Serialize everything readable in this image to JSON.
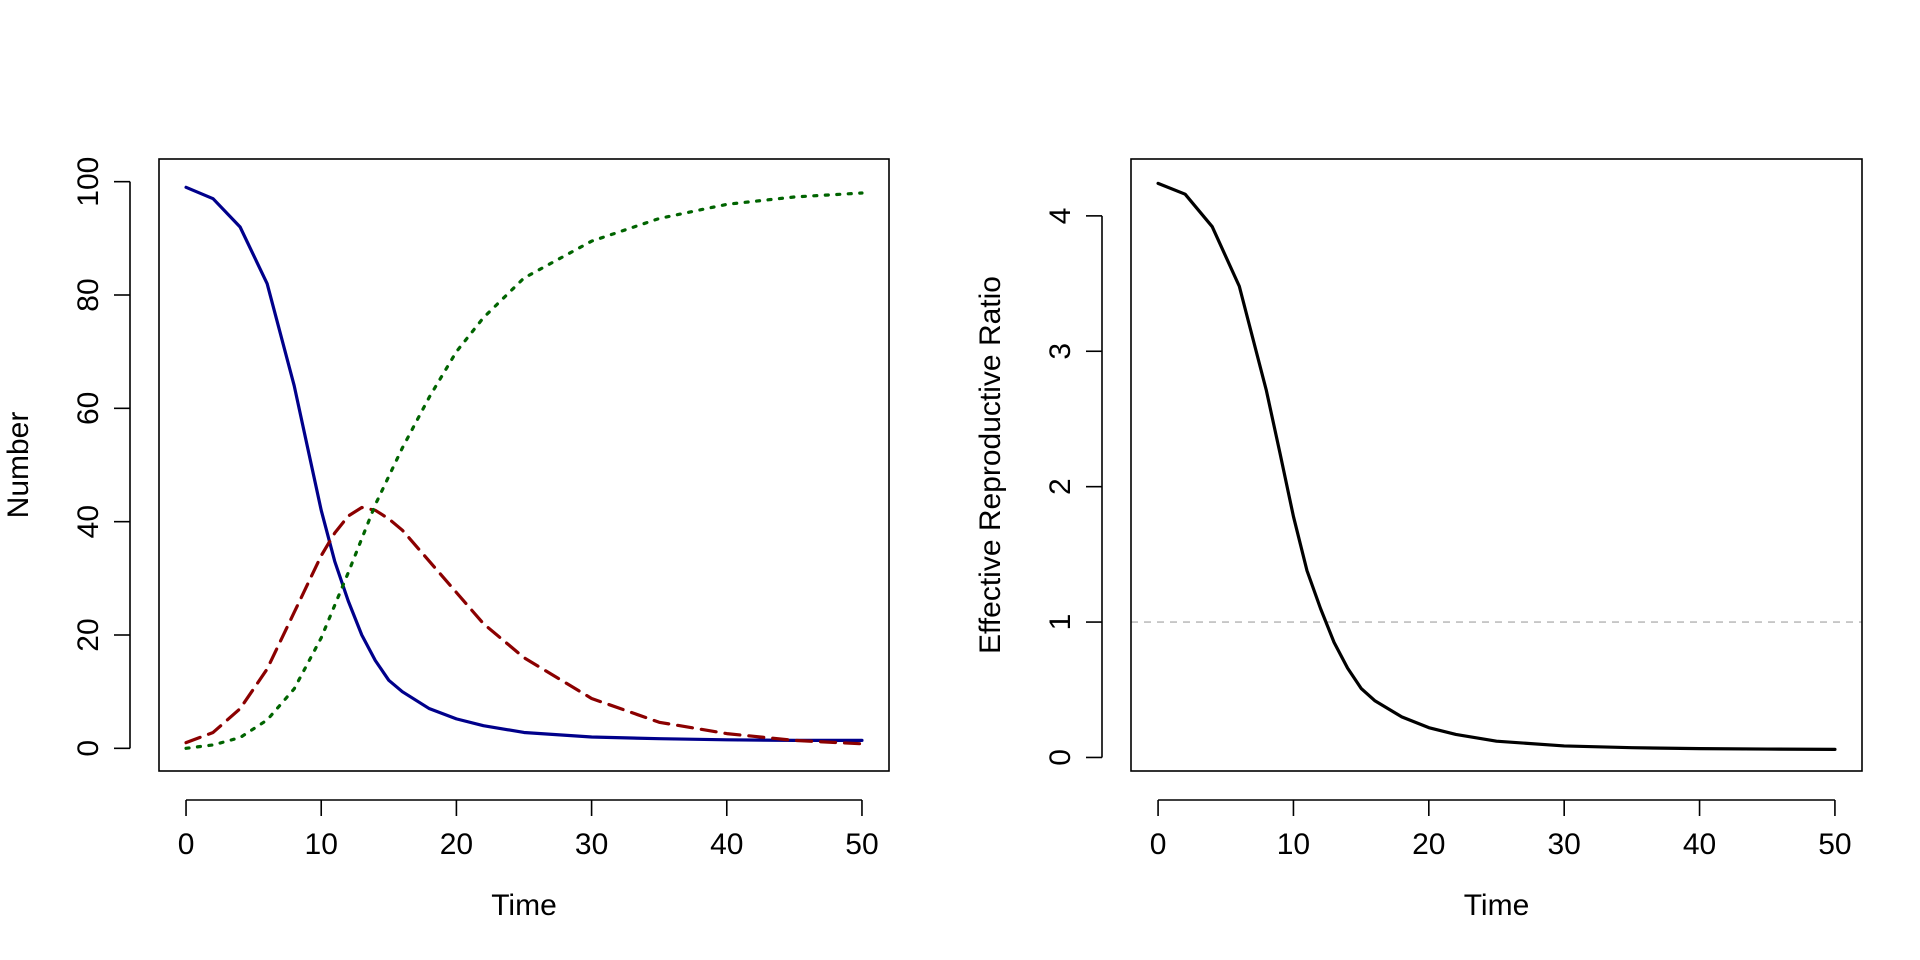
{
  "colors": {
    "susceptible": "#00008B",
    "infected": "#8B0000",
    "recovered": "#006400",
    "reff": "#000000",
    "threshold": "#BEBEBE"
  },
  "chart_data": [
    {
      "type": "line",
      "title": "",
      "xlabel": "Time",
      "ylabel": "Number",
      "xlim": [
        -2,
        52
      ],
      "ylim": [
        -4,
        104
      ],
      "xticks": [
        0,
        10,
        20,
        30,
        40,
        50
      ],
      "yticks": [
        0,
        20,
        40,
        60,
        80,
        100
      ],
      "legend": "none",
      "series": [
        {
          "id": "susceptible",
          "style": "solid",
          "x": [
            0,
            2,
            4,
            6,
            8,
            9,
            10,
            11,
            12,
            13,
            14,
            15,
            16,
            18,
            20,
            22,
            25,
            30,
            35,
            40,
            45,
            50
          ],
          "y": [
            99,
            97,
            92,
            82,
            64,
            53,
            42,
            33,
            26,
            20,
            15.5,
            12,
            10,
            7,
            5.2,
            4,
            2.8,
            2,
            1.7,
            1.5,
            1.4,
            1.4
          ]
        },
        {
          "id": "infected",
          "style": "dashed",
          "x": [
            0,
            2,
            4,
            6,
            8,
            10,
            11,
            12,
            13,
            14,
            15,
            16,
            18,
            20,
            22,
            25,
            30,
            35,
            40,
            45,
            50
          ],
          "y": [
            1,
            2.8,
            7,
            14,
            24,
            34,
            38,
            41,
            42.5,
            42,
            40.5,
            38.5,
            33,
            27.5,
            22,
            16,
            8.8,
            4.6,
            2.6,
            1.4,
            0.8
          ]
        },
        {
          "id": "recovered",
          "style": "dotted",
          "x": [
            0,
            2,
            4,
            6,
            8,
            10,
            12,
            14,
            16,
            18,
            20,
            22,
            25,
            30,
            35,
            40,
            45,
            50
          ],
          "y": [
            0,
            0.6,
            1.9,
            5,
            10.5,
            19.5,
            31,
            43,
            53,
            62,
            70,
            76,
            83,
            89.5,
            93.5,
            96,
            97.3,
            98
          ]
        }
      ]
    },
    {
      "type": "line",
      "title": "",
      "xlabel": "Time",
      "ylabel": "Effective Reproductive Ratio",
      "xlim": [
        -2,
        52
      ],
      "ylim": [
        -0.1,
        4.42
      ],
      "xticks": [
        0,
        10,
        20,
        30,
        40,
        50
      ],
      "yticks": [
        0,
        1,
        2,
        3,
        4
      ],
      "legend": "none",
      "reference_line": {
        "y": 1,
        "style": "dashed"
      },
      "series": [
        {
          "id": "reff",
          "style": "solid",
          "x": [
            0,
            2,
            4,
            6,
            8,
            9,
            10,
            11,
            12,
            13,
            14,
            15,
            16,
            18,
            20,
            22,
            25,
            30,
            35,
            40,
            45,
            50
          ],
          "y": [
            4.24,
            4.16,
            3.92,
            3.48,
            2.71,
            2.25,
            1.78,
            1.38,
            1.1,
            0.85,
            0.66,
            0.51,
            0.42,
            0.3,
            0.22,
            0.17,
            0.12,
            0.085,
            0.072,
            0.065,
            0.062,
            0.06
          ]
        }
      ]
    }
  ]
}
